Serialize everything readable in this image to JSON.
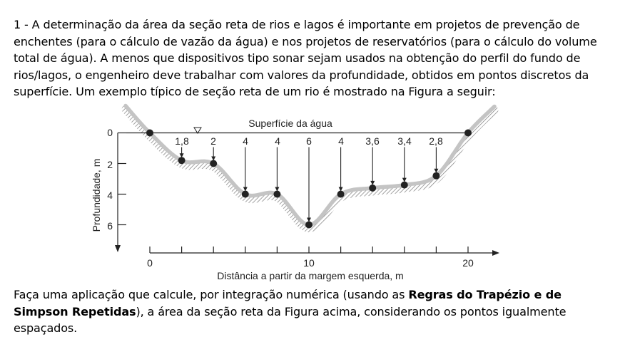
{
  "problem": {
    "number": "1",
    "intro_text": "  - A determinação da área da seção reta de rios e lagos é importante em projetos de prevenção de enchentes (para o cálculo de vazão da água) e nos projetos de reservatórios (para o cálculo do volume total de água). A menos que dispositivos tipo sonar sejam usados na obtenção do perfil do fundo de rios/lagos, o engenheiro deve trabalhar com valores da profundidade, obtidos em pontos discretos da superfície. Um exemplo típico de seção reta de um rio é mostrado na Figura a seguir:",
    "task_before": "Faça uma aplicação que calcule, por integração numérica (usando as ",
    "task_bold": "Regras do Trapézio e de Simpson Repetidas",
    "task_after": "), a área da seção reta da Figura acima, considerando os pontos igualmente espaçados."
  },
  "figure": {
    "water_surface_label": "Superfície da água",
    "x_axis_label": "Distância a partir da margem esquerda, m",
    "y_axis_label": "Profundidade, m",
    "x_tick_labels": [
      "0",
      "10",
      "20"
    ],
    "y_tick_labels": [
      "0",
      "2",
      "4",
      "6"
    ],
    "depth_labels": [
      "1,8",
      "2",
      "4",
      "4",
      "6",
      "4",
      "3,6",
      "3,4",
      "2,8"
    ],
    "colors": {
      "riverbed": "#c4c4c4",
      "hatch": "#8a8a8a",
      "points": "#222222"
    }
  },
  "chart_data": {
    "type": "line",
    "x": [
      0,
      2,
      4,
      6,
      8,
      10,
      12,
      14,
      16,
      18,
      20
    ],
    "y": [
      0,
      1.8,
      2,
      4,
      4,
      6,
      4,
      3.6,
      3.4,
      2.8,
      0
    ],
    "xlabel": "Distância a partir da margem esquerda, m",
    "ylabel": "Profundidade, m",
    "xlim": [
      0,
      20
    ],
    "ylim": [
      0,
      6
    ],
    "y_inverted": true
  }
}
